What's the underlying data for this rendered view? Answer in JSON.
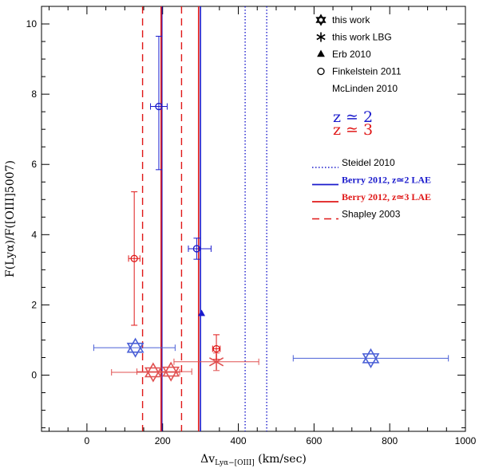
{
  "chart_data": {
    "type": "scatter",
    "xlabel": "Δv",
    "xlabel_sub": "Lyα−[OIII]",
    "xlabel_unit": " (km/sec)",
    "ylabel": "F(Lyα)/F([OIII]5007)",
    "xlim": [
      -120,
      1000
    ],
    "ylim": [
      -1.6,
      10.5
    ],
    "xticks": [
      0,
      200,
      400,
      600,
      800,
      1000
    ],
    "yticks": [
      0,
      2,
      4,
      6,
      8,
      10
    ],
    "xtick_labels": [
      "0",
      "200",
      "400",
      "600",
      "800",
      "1000"
    ],
    "ytick_labels": [
      "0",
      "2",
      "4",
      "6",
      "8",
      "10"
    ],
    "colors": {
      "blue": "#1a1acc",
      "red": "#e01818",
      "mid_blue": "#4a5fd6",
      "light_red": "#e05050",
      "black": "#000000"
    },
    "vertical_lines": [
      {
        "name": "berry-z2-lower",
        "x": 198,
        "style": "solid",
        "color": "#1a1acc"
      },
      {
        "name": "berry-z2-upper",
        "x": 300,
        "style": "solid",
        "color": "#1a1acc"
      },
      {
        "name": "berry-z3-lower",
        "x": 196,
        "style": "solid",
        "color": "#e01818"
      },
      {
        "name": "berry-z3-upper",
        "x": 295,
        "style": "solid",
        "color": "#e01818"
      },
      {
        "name": "shapley-lower",
        "x": 147,
        "style": "dashed",
        "color": "#e01818"
      },
      {
        "name": "shapley-upper",
        "x": 250,
        "style": "dashed",
        "color": "#e01818"
      },
      {
        "name": "steidel-lower",
        "x": 418,
        "style": "dotted",
        "color": "#1a1acc"
      },
      {
        "name": "steidel-upper",
        "x": 475,
        "style": "dotted",
        "color": "#1a1acc"
      }
    ],
    "series": [
      {
        "name": "this work",
        "marker": "star",
        "points": [
          {
            "x": 128,
            "y": 0.78,
            "xerr": [
              110,
              105
            ],
            "yerr": [
              0,
              0
            ],
            "color": "#4a5fd6"
          },
          {
            "x": 750,
            "y": 0.48,
            "xerr": [
              205,
              205
            ],
            "yerr": [
              0,
              0
            ],
            "color": "#4a5fd6"
          },
          {
            "x": 175,
            "y": 0.08,
            "xerr": [
              110,
              70
            ],
            "yerr": [
              0,
              0
            ],
            "color": "#e05050"
          },
          {
            "x": 222,
            "y": 0.1,
            "xerr": [
              90,
              55
            ],
            "yerr": [
              0,
              0
            ],
            "color": "#e05050"
          }
        ]
      },
      {
        "name": "this work LBG",
        "marker": "asterisk",
        "points": [
          {
            "x": 342,
            "y": 0.38,
            "xerr": [
              112,
              112
            ],
            "yerr": [
              0.25,
              0.25
            ],
            "color": "#e05050"
          }
        ]
      },
      {
        "name": "Erb 2010",
        "marker": "triangle",
        "points": [
          {
            "x": 303,
            "y": 1.75,
            "xerr": [
              0,
              0
            ],
            "yerr": [
              0,
              0
            ],
            "color": "#1a1acc"
          }
        ]
      },
      {
        "name": "Finkelstein 2011",
        "marker": "circle",
        "points": [
          {
            "x": 190,
            "y": 7.65,
            "xerr": [
              22,
              22
            ],
            "yerr": [
              1.8,
              2.0
            ],
            "color": "#1a1acc"
          },
          {
            "x": 290,
            "y": 3.6,
            "xerr": [
              22,
              38
            ],
            "yerr": [
              0.3,
              0.3
            ],
            "color": "#1a1acc"
          },
          {
            "x": 125,
            "y": 3.32,
            "xerr": [
              15,
              15
            ],
            "yerr": [
              1.9,
              1.9
            ],
            "color": "#e01818"
          },
          {
            "x": 342,
            "y": 0.75,
            "xerr": [
              10,
              10
            ],
            "yerr": [
              0.3,
              0.4
            ],
            "color": "#e01818"
          }
        ]
      }
    ],
    "legend": [
      {
        "label": "this work",
        "marker": "star"
      },
      {
        "label": "this work LBG",
        "marker": "asterisk"
      },
      {
        "label": "Erb 2010",
        "marker": "triangle"
      },
      {
        "label": "Finkelstein 2011",
        "marker": "circle"
      },
      {
        "label": "McLinden 2010",
        "marker": "none"
      }
    ],
    "z_labels": [
      {
        "text": "z ≃ 2",
        "color": "#1a1acc"
      },
      {
        "text": "z ≃ 3",
        "color": "#e01818"
      }
    ],
    "line_legend": [
      {
        "label": "Steidel 2010",
        "style": "dotted",
        "color": "#1a1acc",
        "mono": false
      },
      {
        "label": "Berry 2012, z≃2 LAE",
        "style": "solid",
        "color": "#1a1acc",
        "mono": true
      },
      {
        "label": "Berry 2012, z≃3 LAE",
        "style": "solid",
        "color": "#e01818",
        "mono": true
      },
      {
        "label": "Shapley 2003",
        "style": "dashed",
        "color": "#e01818",
        "mono": false
      }
    ]
  }
}
